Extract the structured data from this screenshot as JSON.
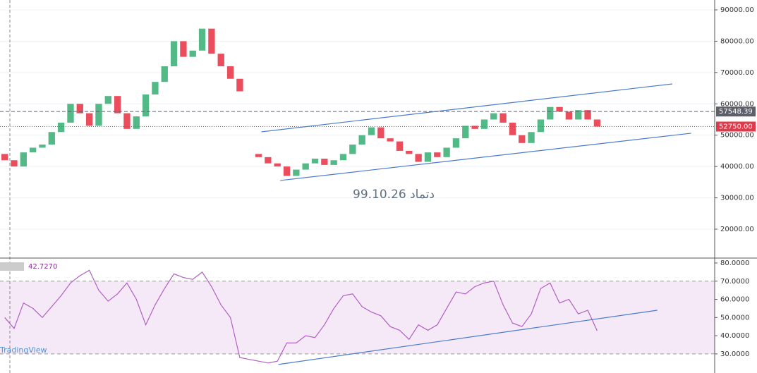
{
  "chart_data": [
    {
      "type": "candlestick",
      "open": [
        44000,
        42000,
        40000,
        44500,
        46000,
        47000,
        51000,
        54000,
        60000,
        57000,
        53000,
        60000,
        62500,
        57000,
        52000,
        56000,
        63000,
        67000,
        72000,
        80000,
        75000,
        77000,
        84000,
        76000,
        72000,
        68000,
        null,
        44000,
        43000,
        41000,
        40000,
        37000,
        39000,
        41000,
        42500,
        40500,
        42000,
        44000,
        47000,
        50000,
        52500,
        49000,
        48000,
        45000,
        44000,
        41500,
        44500,
        43000,
        46000,
        49000,
        53000,
        52000,
        55000,
        57000,
        54000,
        50000,
        47500,
        51000,
        55000,
        59000,
        57500,
        55000,
        58000,
        55000
      ],
      "close": [
        42000,
        40000,
        44500,
        46000,
        47000,
        51000,
        54000,
        60000,
        57000,
        53000,
        60000,
        62500,
        57000,
        52000,
        56000,
        63000,
        67000,
        72000,
        80000,
        75000,
        77000,
        84000,
        76000,
        72000,
        68000,
        64000,
        null,
        43000,
        41000,
        40000,
        37000,
        39000,
        41000,
        42500,
        40500,
        42000,
        44000,
        47000,
        50000,
        52500,
        49000,
        48000,
        45000,
        44000,
        41500,
        44500,
        43000,
        46000,
        49000,
        53000,
        52000,
        55000,
        57000,
        54000,
        50000,
        47500,
        51000,
        55000,
        59000,
        57500,
        55000,
        58000,
        55000,
        52750
      ],
      "up_color": "#53b987",
      "down_color": "#eb4d5c",
      "ylim": [
        10770,
        93150
      ],
      "yticks": [
        {
          "value": 90000,
          "label": "90000.00"
        },
        {
          "value": 80000,
          "label": "80000.00"
        },
        {
          "value": 70000,
          "label": "70000.00"
        },
        {
          "value": 60000,
          "label": "60000.00"
        },
        {
          "value": 50000,
          "label": "50000.00"
        },
        {
          "value": 40000,
          "label": "40000.00"
        },
        {
          "value": 30000,
          "label": "30000.00"
        },
        {
          "value": 20000,
          "label": "20000.00"
        }
      ],
      "grid": true,
      "price_lines": [
        {
          "value": 57548.39,
          "color": "#5d606b",
          "style": "dashed"
        },
        {
          "value": 52750,
          "label": "52750.00",
          "color": "#e0394a",
          "style": "dotted"
        }
      ],
      "trend_lines": [
        {
          "x": [
            27.3,
            71
          ],
          "y": [
            51070,
            66370
          ]
        },
        {
          "x": [
            29.3,
            73
          ],
          "y": [
            35540,
            50620
          ]
        }
      ],
      "trend_color": "#4a7bd0",
      "annotation": "99.10.26 دتماد",
      "watermark": "TradingView"
    },
    {
      "type": "line",
      "values": [
        50,
        44,
        58,
        55,
        50,
        56,
        62,
        69,
        73,
        76,
        65,
        59,
        63,
        69,
        60,
        46,
        57,
        66,
        74,
        72,
        71,
        75,
        67,
        57,
        50,
        28,
        27,
        26,
        25,
        26,
        36,
        36,
        40,
        39,
        46,
        55,
        62,
        63,
        56,
        53,
        51,
        45,
        43,
        38,
        46,
        43,
        46,
        55,
        64,
        63,
        67,
        69,
        70,
        57,
        47,
        45,
        52,
        66,
        69,
        58,
        60,
        52,
        54,
        42.727
      ],
      "current_label": "42.7270",
      "color": "#b15fc2",
      "ylim": [
        19.5,
        82.7
      ],
      "yticks": [
        {
          "value": 80,
          "label": "80.0000"
        },
        {
          "value": 70,
          "label": "70.0000"
        },
        {
          "value": 60,
          "label": "60.0000"
        },
        {
          "value": 50,
          "label": "50.0000"
        },
        {
          "value": 40,
          "label": "40.0000"
        },
        {
          "value": 30,
          "label": "30.0000"
        }
      ],
      "band": [
        30,
        70
      ],
      "band_color": "#9c27b0",
      "trend_lines": [
        {
          "x": [
            29.1,
            69.4
          ],
          "y": [
            24.2,
            54.0
          ]
        }
      ],
      "trend_color": "#4a7bd0"
    }
  ]
}
